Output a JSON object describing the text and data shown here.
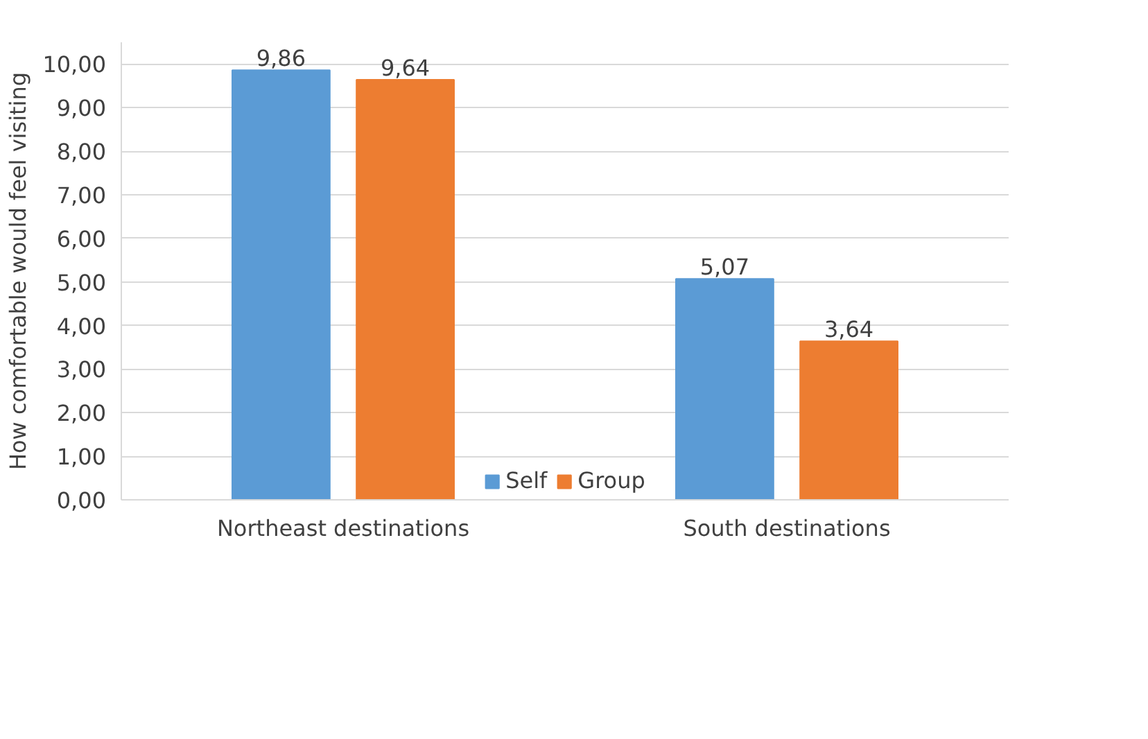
{
  "chart_data": {
    "type": "bar",
    "ylabel": "How comfortable would feel visiting",
    "categories": [
      "Northeast destinations",
      "South destinations"
    ],
    "series": [
      {
        "name": "Self",
        "color": "#5b9bd5",
        "values": [
          9.86,
          5.07
        ],
        "value_labels": [
          "9,86",
          "5,07"
        ]
      },
      {
        "name": "Group",
        "color": "#ed7d31",
        "values": [
          9.64,
          3.64
        ],
        "value_labels": [
          "9,64",
          "3,64"
        ]
      }
    ],
    "ylim": [
      0,
      10.5
    ],
    "yticks": [
      {
        "value": 0,
        "label": "0,00"
      },
      {
        "value": 1,
        "label": "1,00"
      },
      {
        "value": 2,
        "label": "2,00"
      },
      {
        "value": 3,
        "label": "3,00"
      },
      {
        "value": 4,
        "label": "4,00"
      },
      {
        "value": 5,
        "label": "5,00"
      },
      {
        "value": 6,
        "label": "6,00"
      },
      {
        "value": 7,
        "label": "7,00"
      },
      {
        "value": 8,
        "label": "8,00"
      },
      {
        "value": 9,
        "label": "9,00"
      },
      {
        "value": 10,
        "label": "10,00"
      }
    ],
    "grid": "y",
    "legend": "bottom"
  }
}
